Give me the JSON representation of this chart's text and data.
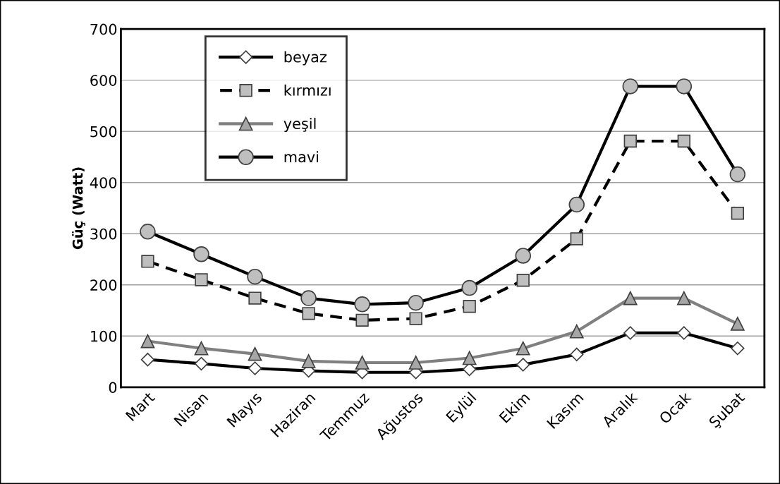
{
  "chart_data": {
    "type": "line",
    "ylabel": "Güç (Watt)",
    "categories": [
      "Mart",
      "Nisan",
      "Mayıs",
      "Haziran",
      "Temmuz",
      "Ağustos",
      "Eylül",
      "Ekim",
      "Kasım",
      "Aralık",
      "Ocak",
      "Şubat"
    ],
    "series": [
      {
        "name": "beyaz",
        "color": "#000000",
        "marker": "diamond",
        "line_style": "solid",
        "values": [
          54,
          46,
          37,
          32,
          29,
          29,
          35,
          44,
          64,
          106,
          106,
          76
        ]
      },
      {
        "name": "kırmızı",
        "color": "#000000",
        "marker": "square",
        "line_style": "dashed",
        "values": [
          246,
          210,
          174,
          144,
          131,
          134,
          158,
          209,
          290,
          481,
          481,
          340
        ]
      },
      {
        "name": "yeşil",
        "color": "#808080",
        "marker": "triangle",
        "line_style": "solid",
        "values": [
          90,
          76,
          65,
          51,
          48,
          48,
          57,
          76,
          109,
          174,
          174,
          124
        ]
      },
      {
        "name": "mavi",
        "color": "#000000",
        "marker": "circle",
        "line_style": "solid",
        "values": [
          304,
          260,
          216,
          174,
          162,
          165,
          194,
          257,
          357,
          588,
          588,
          416
        ]
      }
    ],
    "ylim": [
      0,
      700
    ],
    "yticks": [
      0,
      100,
      200,
      300,
      400,
      500,
      600,
      700
    ],
    "grid": "y",
    "legend": "top left"
  }
}
